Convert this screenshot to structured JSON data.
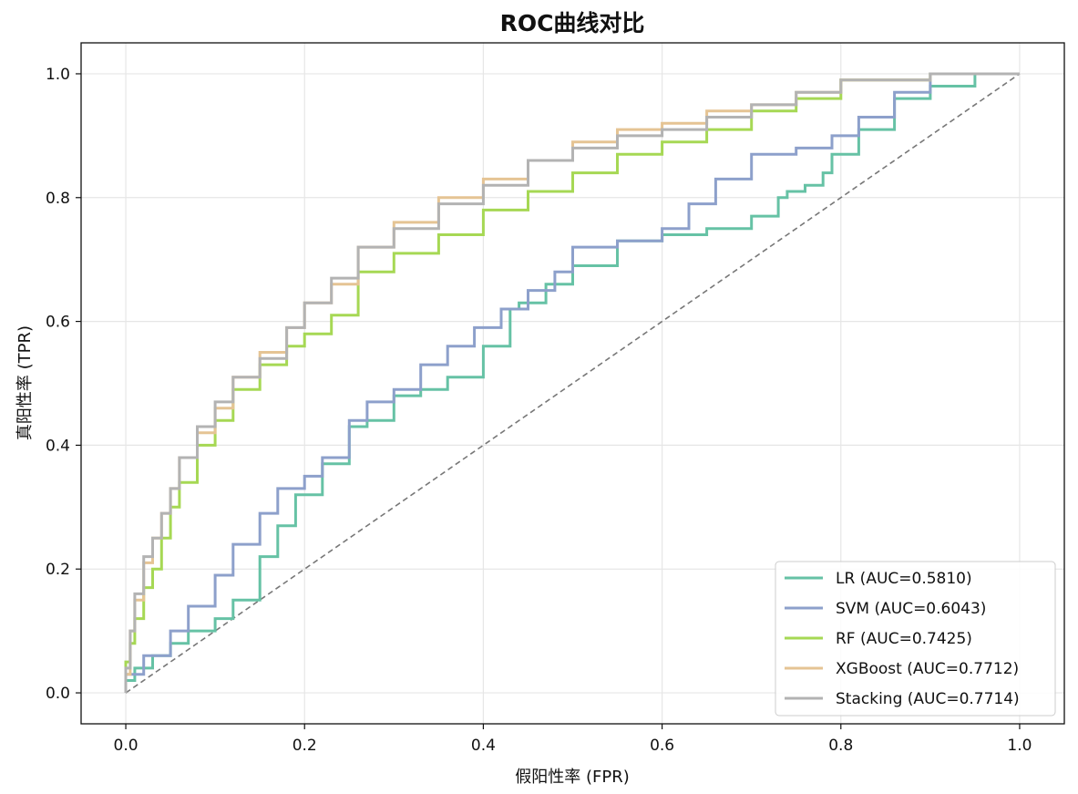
{
  "chart_data": {
    "type": "line",
    "title": "ROC曲线对比",
    "xlabel": "假阳性率 (FPR)",
    "ylabel": "真阳性率 (TPR)",
    "xlim": [
      -0.05,
      1.05
    ],
    "ylim": [
      -0.05,
      1.05
    ],
    "xticks": [
      "0.0",
      "0.2",
      "0.4",
      "0.6",
      "0.8",
      "1.0"
    ],
    "yticks": [
      "0.0",
      "0.2",
      "0.4",
      "0.6",
      "0.8",
      "1.0"
    ],
    "grid": true,
    "legend_position": "lower right",
    "diagonal": {
      "x": [
        0,
        1
      ],
      "y": [
        0,
        1
      ],
      "color": "#777777",
      "style": "dashed"
    },
    "series": [
      {
        "name": "LR (AUC=0.5810)",
        "color": "#66c2a5",
        "x": [
          0,
          0.01,
          0.03,
          0.05,
          0.07,
          0.1,
          0.12,
          0.15,
          0.17,
          0.19,
          0.22,
          0.25,
          0.27,
          0.3,
          0.33,
          0.36,
          0.4,
          0.43,
          0.44,
          0.47,
          0.5,
          0.55,
          0.6,
          0.65,
          0.7,
          0.73,
          0.74,
          0.76,
          0.78,
          0.79,
          0.82,
          0.86,
          0.9,
          0.95,
          1.0
        ],
        "y": [
          0,
          0.02,
          0.04,
          0.06,
          0.08,
          0.1,
          0.12,
          0.15,
          0.22,
          0.27,
          0.32,
          0.37,
          0.43,
          0.44,
          0.48,
          0.49,
          0.51,
          0.56,
          0.62,
          0.63,
          0.66,
          0.69,
          0.73,
          0.74,
          0.75,
          0.77,
          0.8,
          0.81,
          0.82,
          0.84,
          0.87,
          0.91,
          0.96,
          0.98,
          1.0
        ]
      },
      {
        "name": "SVM (AUC=0.6043)",
        "color": "#8da0cb",
        "x": [
          0,
          0.02,
          0.05,
          0.07,
          0.1,
          0.12,
          0.15,
          0.17,
          0.2,
          0.22,
          0.25,
          0.27,
          0.3,
          0.33,
          0.36,
          0.39,
          0.42,
          0.45,
          0.48,
          0.5,
          0.55,
          0.6,
          0.63,
          0.66,
          0.7,
          0.75,
          0.79,
          0.82,
          0.86,
          0.9,
          1.0
        ],
        "y": [
          0,
          0.03,
          0.06,
          0.1,
          0.14,
          0.19,
          0.24,
          0.29,
          0.33,
          0.35,
          0.38,
          0.44,
          0.47,
          0.49,
          0.53,
          0.56,
          0.59,
          0.62,
          0.65,
          0.68,
          0.72,
          0.73,
          0.75,
          0.79,
          0.83,
          0.87,
          0.88,
          0.9,
          0.93,
          0.97,
          1.0
        ]
      },
      {
        "name": "RF (AUC=0.7425)",
        "color": "#a6d854",
        "x": [
          0,
          0.005,
          0.01,
          0.02,
          0.03,
          0.04,
          0.05,
          0.06,
          0.08,
          0.1,
          0.12,
          0.15,
          0.18,
          0.2,
          0.23,
          0.26,
          0.3,
          0.35,
          0.4,
          0.45,
          0.5,
          0.55,
          0.6,
          0.65,
          0.7,
          0.75,
          0.8,
          0.9,
          1.0
        ],
        "y": [
          0,
          0.05,
          0.08,
          0.12,
          0.17,
          0.2,
          0.25,
          0.3,
          0.34,
          0.4,
          0.44,
          0.49,
          0.53,
          0.56,
          0.58,
          0.61,
          0.68,
          0.71,
          0.74,
          0.78,
          0.81,
          0.84,
          0.87,
          0.89,
          0.91,
          0.94,
          0.96,
          0.99,
          1.0
        ]
      },
      {
        "name": "XGBoost (AUC=0.7712)",
        "color": "#e5c494",
        "x": [
          0,
          0.005,
          0.01,
          0.02,
          0.03,
          0.04,
          0.05,
          0.06,
          0.08,
          0.1,
          0.12,
          0.15,
          0.18,
          0.2,
          0.23,
          0.26,
          0.3,
          0.35,
          0.4,
          0.45,
          0.5,
          0.55,
          0.6,
          0.65,
          0.7,
          0.75,
          0.8,
          0.9,
          1.0
        ],
        "y": [
          0,
          0.03,
          0.1,
          0.15,
          0.21,
          0.25,
          0.29,
          0.33,
          0.38,
          0.42,
          0.46,
          0.51,
          0.55,
          0.59,
          0.63,
          0.66,
          0.72,
          0.76,
          0.8,
          0.83,
          0.86,
          0.89,
          0.91,
          0.92,
          0.94,
          0.95,
          0.97,
          0.99,
          1.0
        ]
      },
      {
        "name": "Stacking (AUC=0.7714)",
        "color": "#b3b3b3",
        "x": [
          0,
          0.005,
          0.01,
          0.02,
          0.03,
          0.04,
          0.05,
          0.06,
          0.08,
          0.1,
          0.12,
          0.15,
          0.18,
          0.2,
          0.23,
          0.26,
          0.3,
          0.35,
          0.4,
          0.45,
          0.5,
          0.55,
          0.6,
          0.65,
          0.7,
          0.75,
          0.8,
          0.9,
          1.0
        ],
        "y": [
          0,
          0.04,
          0.1,
          0.16,
          0.22,
          0.25,
          0.29,
          0.33,
          0.38,
          0.43,
          0.47,
          0.51,
          0.54,
          0.59,
          0.63,
          0.67,
          0.72,
          0.75,
          0.79,
          0.82,
          0.86,
          0.88,
          0.9,
          0.91,
          0.93,
          0.95,
          0.97,
          0.99,
          1.0
        ]
      }
    ]
  }
}
